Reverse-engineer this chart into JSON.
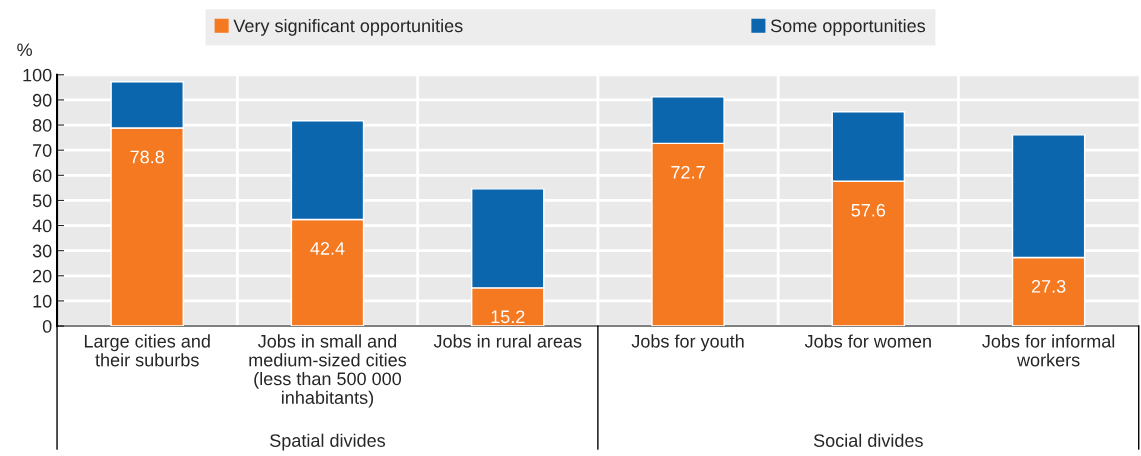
{
  "chart_data": {
    "type": "bar",
    "stacked": true,
    "ylabel": "%",
    "categories": [
      "Large cities and their suburbs",
      "Jobs in small and medium-sized cities (less than 500 000 inhabitants)",
      "Jobs in rural areas",
      "Jobs for youth",
      "Jobs for women",
      "Jobs for informal workers"
    ],
    "series": [
      {
        "name": "Very significant opportunities",
        "color": "#f47920",
        "values": [
          78.8,
          42.4,
          15.2,
          72.7,
          57.6,
          27.3
        ],
        "value_labels": [
          "78.8",
          "42.4",
          "15.2",
          "72.7",
          "57.6",
          "27.3"
        ]
      },
      {
        "name": "Some opportunities",
        "color": "#0c66ad",
        "values": [
          18.4,
          39.3,
          39.4,
          18.5,
          27.7,
          48.8
        ]
      }
    ],
    "ylim": [
      0,
      100
    ],
    "yticks": [
      0,
      10,
      20,
      30,
      40,
      50,
      60,
      70,
      80,
      90,
      100
    ],
    "grid": true,
    "legend": "top",
    "annotations": [
      "Spatial divides",
      "Social divides"
    ]
  }
}
